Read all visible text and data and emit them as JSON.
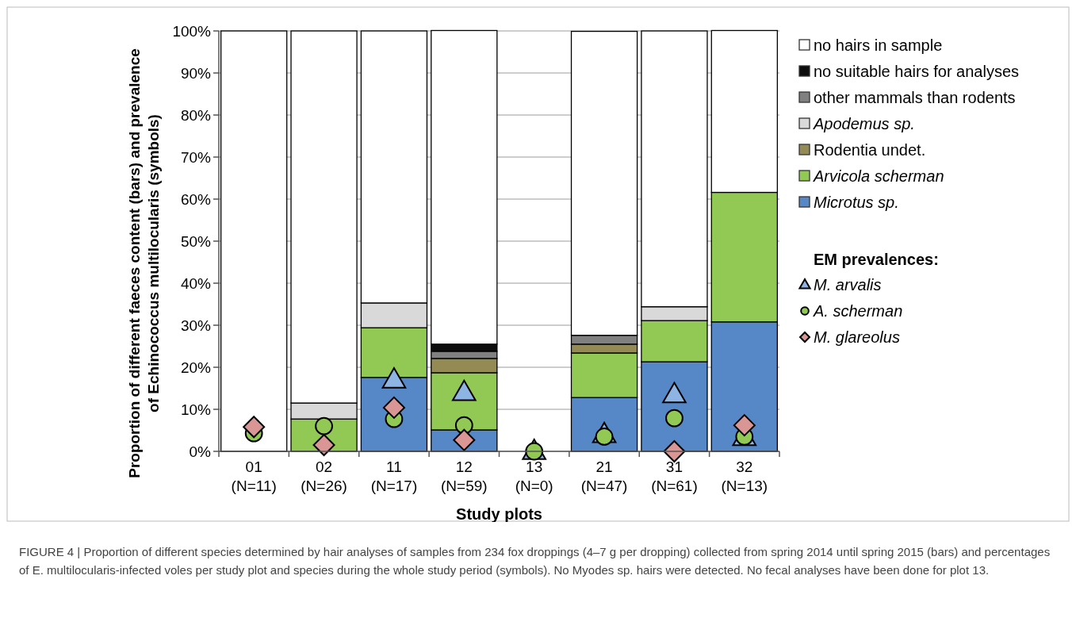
{
  "chart_data": {
    "type": "bar",
    "stacked": true,
    "xlabel": "Study plots",
    "ylabel": "Proportion of different faeces content (bars) and prevalence of Echinococcus multilocularis (symbols)",
    "legend_title": "EM prevalences:",
    "legend": "right",
    "grid": "y",
    "categories": [
      "01\n(N=11)",
      "02\n(N=26)",
      "11\n(N=17)",
      "12\n(N=59)",
      "13\n(N=0)",
      "21\n(N=47)",
      "31\n(N=61)",
      "32\n(N=13)"
    ],
    "ylim": [
      0,
      100
    ],
    "yticks": [
      {
        "value": 0,
        "label": "0%"
      },
      {
        "value": 10,
        "label": "10%"
      },
      {
        "value": 20,
        "label": "20%"
      },
      {
        "value": 30,
        "label": "30%"
      },
      {
        "value": 40,
        "label": "40%"
      },
      {
        "value": 50,
        "label": "50%"
      },
      {
        "value": 60,
        "label": "60%"
      },
      {
        "value": 70,
        "label": "70%"
      },
      {
        "value": 80,
        "label": "80%"
      },
      {
        "value": 90,
        "label": "90%"
      },
      {
        "value": 100,
        "label": "100%"
      }
    ],
    "series": [
      {
        "name": "Microtus sp.",
        "color": "#5687c6",
        "values": [
          0,
          0,
          17.6,
          5.1,
          0,
          12.8,
          21.3,
          30.8
        ]
      },
      {
        "name": "Arvicola scherman",
        "color": "#92c955",
        "values": [
          0,
          7.7,
          11.8,
          13.6,
          0,
          10.6,
          9.8,
          30.8
        ]
      },
      {
        "name": "Rodentia undet.",
        "color": "#948a54",
        "values": [
          0,
          0,
          0,
          3.4,
          0,
          2.1,
          0,
          0
        ]
      },
      {
        "name": "Apodemus sp.",
        "color": "#d9d9d9",
        "values": [
          0,
          3.8,
          5.9,
          0,
          0,
          0,
          3.3,
          0
        ]
      },
      {
        "name": "other mammals than rodents",
        "color": "#808080",
        "values": [
          0,
          0,
          0,
          1.7,
          0,
          2.1,
          0,
          0
        ]
      },
      {
        "name": "no suitable hairs for analyses",
        "color": "#0d0d0d",
        "values": [
          0,
          0,
          0,
          1.7,
          0,
          0,
          0,
          0
        ]
      },
      {
        "name": "no hairs in sample",
        "color": "#ffffff",
        "values": [
          100,
          88.5,
          64.7,
          74.6,
          0,
          72.3,
          65.6,
          38.5
        ]
      },
      {
        "name": "M. arvalis",
        "type": "scatter",
        "marker": "triangle",
        "color": "#8eb4e3",
        "x": [
          "01\n(N=11)",
          "02\n(N=26)",
          "11\n(N=17)",
          "12\n(N=59)",
          "13\n(N=0)",
          "21\n(N=47)",
          "31\n(N=61)",
          "32\n(N=13)"
        ],
        "values": [
          null,
          null,
          17,
          14,
          0,
          4,
          13.5,
          3.3
        ]
      },
      {
        "name": "A. scherman",
        "type": "scatter",
        "marker": "circle",
        "color": "#92c955",
        "x": [
          "01\n(N=11)",
          "02\n(N=26)",
          "11\n(N=17)",
          "12\n(N=59)",
          "13\n(N=0)",
          "21\n(N=47)",
          "31\n(N=61)",
          "32\n(N=13)"
        ],
        "values": [
          4.3,
          6,
          7.7,
          6.2,
          0,
          3.5,
          7.9,
          3.5
        ]
      },
      {
        "name": "M. glareolus",
        "type": "scatter",
        "marker": "diamond",
        "color": "#d99694",
        "x": [
          "01\n(N=11)",
          "02\n(N=26)",
          "11\n(N=17)",
          "12\n(N=59)",
          "13\n(N=0)",
          "21\n(N=47)",
          "31\n(N=61)",
          "32\n(N=13)"
        ],
        "values": [
          5.8,
          1.5,
          10.4,
          2.7,
          null,
          null,
          0,
          6.2
        ]
      }
    ],
    "annotations": [
      "FIGURE 4 | Proportion of different species determined by hair analyses of samples from 234 fox droppings (4–7 g per dropping) collected from spring 2014 until spring 2015 (bars) and percentages of E. multilocularis-infected voles per study plot and species during the whole study period (symbols). No Myodes sp. hairs were detected. No fecal analyses have been done for plot 13."
    ]
  }
}
